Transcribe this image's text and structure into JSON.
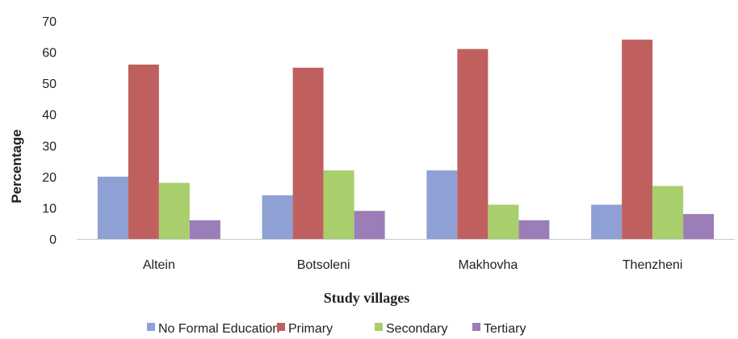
{
  "chart_data": {
    "type": "bar",
    "title": "",
    "xlabel": "Study villages",
    "ylabel": "Percentage",
    "ylim": [
      0,
      70
    ],
    "yticks": [
      0,
      10,
      20,
      30,
      40,
      50,
      60,
      70
    ],
    "grid": false,
    "legend_position": "bottom",
    "categories": [
      "Altein",
      "Botsoleni",
      "Makhovha",
      "Thenzheni"
    ],
    "series": [
      {
        "name": "No Formal Education",
        "color": "#8EA0D4",
        "values": [
          20,
          14,
          22,
          11
        ]
      },
      {
        "name": "Primary",
        "color": "#C0605E",
        "values": [
          56,
          55,
          61,
          64
        ]
      },
      {
        "name": "Secondary",
        "color": "#A8CF6B",
        "values": [
          18,
          22,
          11,
          17
        ]
      },
      {
        "name": "Tertiary",
        "color": "#9B7DB8",
        "values": [
          6,
          9,
          6,
          8
        ]
      }
    ]
  }
}
